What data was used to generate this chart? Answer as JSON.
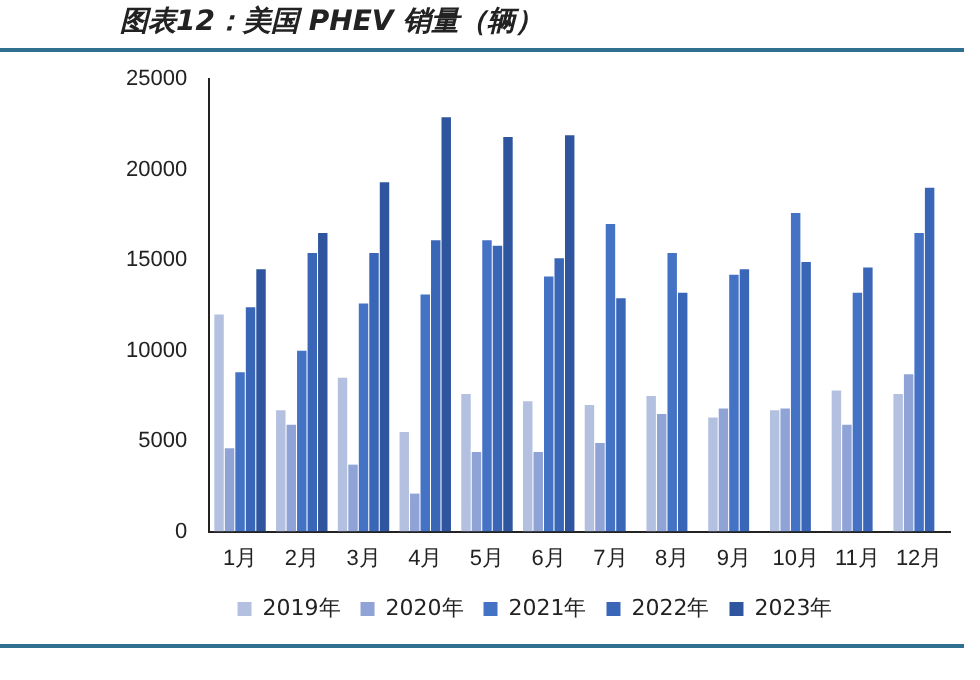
{
  "chart_data": {
    "type": "bar",
    "title": "图表12：美国 PHEV 销量（辆）",
    "categories": [
      "1月",
      "2月",
      "3月",
      "4月",
      "5月",
      "6月",
      "7月",
      "8月",
      "9月",
      "10月",
      "11月",
      "12月"
    ],
    "series": [
      {
        "name": "2019年",
        "color": "#b4c0e0",
        "values": [
          12000,
          6700,
          8500,
          5500,
          7600,
          7200,
          7000,
          7500,
          6300,
          6700,
          7800,
          7600
        ]
      },
      {
        "name": "2020年",
        "color": "#8fa3d6",
        "values": [
          4600,
          5900,
          3700,
          2100,
          4400,
          4400,
          4900,
          6500,
          6800,
          6800,
          5900,
          8700
        ]
      },
      {
        "name": "2021年",
        "color": "#4472c4",
        "values": [
          8800,
          10000,
          12600,
          13100,
          16100,
          14100,
          17000,
          15400,
          14200,
          17600,
          13200,
          16500
        ]
      },
      {
        "name": "2022年",
        "color": "#3a66b8",
        "values": [
          12400,
          15400,
          15400,
          16100,
          15800,
          15100,
          12900,
          13200,
          14500,
          14900,
          14600,
          19000
        ]
      },
      {
        "name": "2023年",
        "color": "#2f559e",
        "values": [
          14500,
          16500,
          19300,
          22900,
          21800,
          21900,
          null,
          null,
          null,
          null,
          null,
          null
        ]
      }
    ],
    "ylim": [
      0,
      25000
    ],
    "yticks": [
      0,
      5000,
      10000,
      15000,
      20000,
      25000
    ],
    "grid": false,
    "legend": "bottom"
  }
}
